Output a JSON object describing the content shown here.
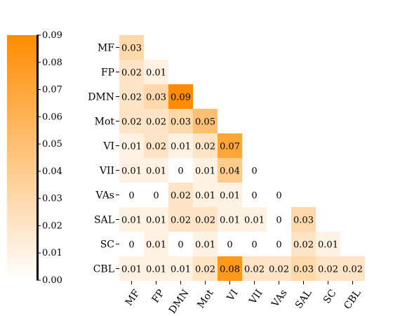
{
  "chart_data": {
    "type": "heatmap",
    "title": "",
    "xlabel": "",
    "ylabel": "",
    "rows": [
      "MF",
      "FP",
      "DMN",
      "Mot",
      "VI",
      "VII",
      "VAs",
      "SAL",
      "SC",
      "CBL"
    ],
    "cols": [
      "MF",
      "FP",
      "DMN",
      "Mot",
      "VI",
      "VII",
      "VAs",
      "SAL",
      "SC",
      "CBL"
    ],
    "values": [
      [
        0.03
      ],
      [
        0.02,
        0.01
      ],
      [
        0.02,
        0.03,
        0.09
      ],
      [
        0.02,
        0.02,
        0.03,
        0.05
      ],
      [
        0.01,
        0.02,
        0.01,
        0.02,
        0.07
      ],
      [
        0.01,
        0.01,
        0,
        0.01,
        0.04,
        0
      ],
      [
        0,
        0,
        0.02,
        0.01,
        0.01,
        0,
        0
      ],
      [
        0.01,
        0.01,
        0.02,
        0.02,
        0.01,
        0.01,
        0,
        0.03
      ],
      [
        0,
        0.01,
        0,
        0.01,
        0,
        0,
        0,
        0.02,
        0.01
      ],
      [
        0.01,
        0.01,
        0.01,
        0.02,
        0.08,
        0.02,
        0.02,
        0.03,
        0.02,
        0.02
      ]
    ],
    "cell_labels": [
      [
        "0.03"
      ],
      [
        "0.02",
        "0.01"
      ],
      [
        "0.02",
        "0.03",
        "0.09"
      ],
      [
        "0.02",
        "0.02",
        "0.03",
        "0.05"
      ],
      [
        "0.01",
        "0.02",
        "0.01",
        "0.02",
        "0.07"
      ],
      [
        "0.01",
        "0.01",
        "0",
        "0.01",
        "0.04",
        "0"
      ],
      [
        "0",
        "0",
        "0.02",
        "0.01",
        "0.01",
        "0",
        "0"
      ],
      [
        "0.01",
        "0.01",
        "0.02",
        "0.02",
        "0.01",
        "0.01",
        "0",
        "0.03"
      ],
      [
        "0",
        "0.01",
        "0",
        "0.01",
        "0",
        "0",
        "0",
        "0.02",
        "0.01"
      ],
      [
        "0.01",
        "0.01",
        "0.01",
        "0.02",
        "0.08",
        "0.02",
        "0.02",
        "0.03",
        "0.02",
        "0.02"
      ]
    ],
    "colorbar": {
      "range": [
        0,
        0.09
      ],
      "ticks": [
        "0.09",
        "0.08",
        "0.07",
        "0.06",
        "0.05",
        "0.04",
        "0.03",
        "0.02",
        "0.01",
        "0.00"
      ],
      "position": "left"
    },
    "colors": {
      "low": "#ffffff",
      "high": "#ff8c00"
    }
  }
}
